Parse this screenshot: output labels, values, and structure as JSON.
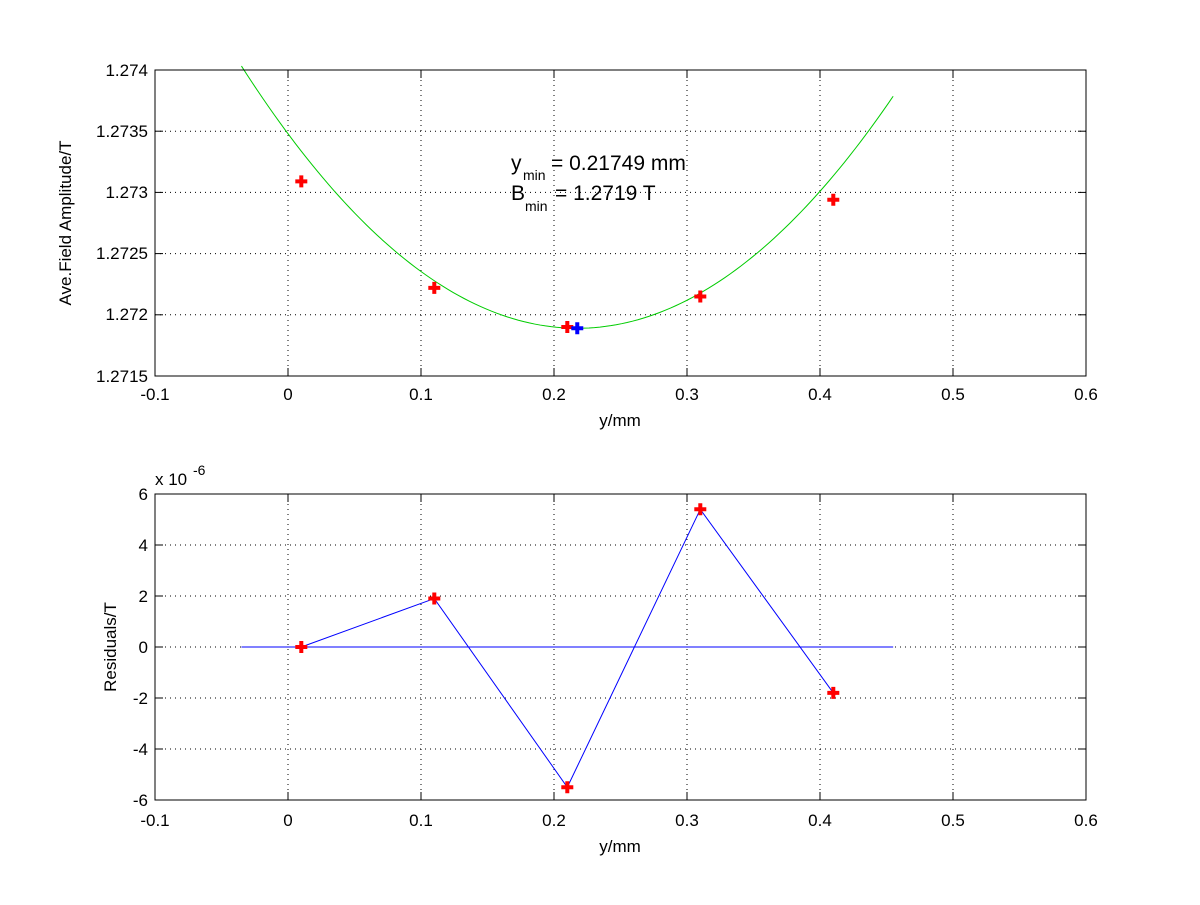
{
  "chart_data": [
    {
      "type": "scatter",
      "xlabel": "y/mm",
      "ylabel": "Ave.Field Amplitude/T",
      "xlim": [
        -0.1,
        0.6
      ],
      "ylim": [
        1.2715,
        1.274
      ],
      "grid": true,
      "x_ticks": [
        "-0.1",
        "0",
        "0.1",
        "0.2",
        "0.3",
        "0.4",
        "0.5",
        "0.6"
      ],
      "y_ticks": [
        "1.2715",
        "1.272",
        "1.2725",
        "1.273",
        "1.2735",
        "1.274"
      ],
      "annotations": {
        "ymin_symbol": "y",
        "ymin_sub": "min",
        "ymin_text": "= 0.21749 mm",
        "bmin_symbol": "B",
        "bmin_sub": "min",
        "bmin_text": "= 1.2719 T"
      },
      "series": [
        {
          "kind": "points",
          "color": "#ff0000",
          "marker": "plus",
          "x": [
            0.01,
            0.11,
            0.21,
            0.31,
            0.41
          ],
          "y": [
            1.27309,
            1.27222,
            1.2719,
            1.27215,
            1.27294
          ]
        },
        {
          "kind": "fit_curve",
          "color": "#00cc00",
          "vertex_x": 0.21749,
          "vertex_y": 1.27189,
          "curvature": 0.0336,
          "x_range": [
            -0.035,
            0.455
          ]
        },
        {
          "kind": "minimum_point",
          "color": "#0000ff",
          "marker": "plus",
          "x": [
            0.21749
          ],
          "y": [
            1.27189
          ]
        }
      ]
    },
    {
      "type": "line",
      "xlabel": "y/mm",
      "ylabel": "Residuals/T",
      "multiplier": "x 10",
      "multiplier_exp": "-6",
      "xlim": [
        -0.1,
        0.6
      ],
      "ylim": [
        -6,
        6
      ],
      "y_scale": "1e-6",
      "grid": true,
      "x_ticks": [
        "-0.1",
        "0",
        "0.1",
        "0.2",
        "0.3",
        "0.4",
        "0.5",
        "0.6"
      ],
      "y_ticks": [
        "-6",
        "-4",
        "-2",
        "0",
        "2",
        "4",
        "6"
      ],
      "series": [
        {
          "kind": "line_with_points",
          "line_color": "#0000ff",
          "marker_color": "#ff0000",
          "marker": "plus",
          "x": [
            0.01,
            0.11,
            0.21,
            0.31,
            0.41
          ],
          "y": [
            0.0,
            1.9,
            -5.5,
            5.4,
            -1.8
          ]
        },
        {
          "kind": "zero_line",
          "color": "#0000ff",
          "x_range": [
            -0.035,
            0.455
          ],
          "y": 0
        }
      ]
    }
  ]
}
